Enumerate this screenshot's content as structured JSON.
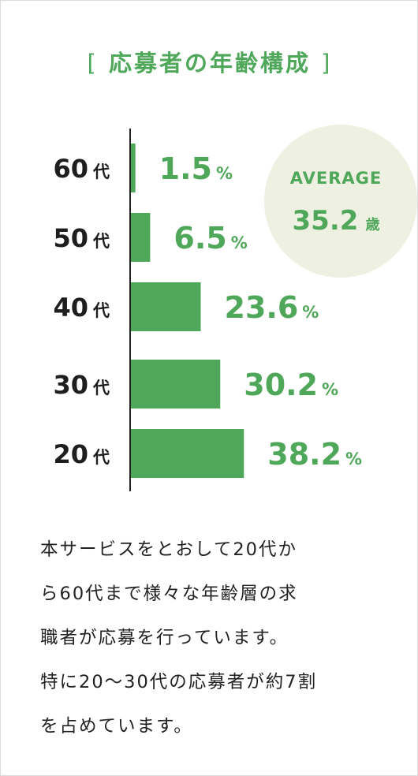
{
  "title": {
    "open_bracket": "[",
    "text": "応募者の年齢構成",
    "close_bracket": "]"
  },
  "chart_data": {
    "type": "bar",
    "orientation": "horizontal",
    "categories": [
      {
        "num": "60",
        "suffix": "代"
      },
      {
        "num": "50",
        "suffix": "代"
      },
      {
        "num": "40",
        "suffix": "代"
      },
      {
        "num": "30",
        "suffix": "代"
      },
      {
        "num": "20",
        "suffix": "代"
      }
    ],
    "values": [
      1.5,
      6.5,
      23.6,
      30.2,
      38.2
    ],
    "value_unit": "%",
    "bar_color": "#4fa75a",
    "label_color": "#4fa75a",
    "category_color": "#1e1e1e",
    "axis_color": "#222222"
  },
  "average": {
    "label": "AVERAGE",
    "value": "35.2",
    "unit": "歳",
    "bg_color": "#eef0e2",
    "text_color": "#4fa75a"
  },
  "description_lines": [
    "本サービスをとおして20代か",
    "ら60代まで様々な年齢層の求",
    "職者が応募を行っています。",
    "特に20〜30代の応募者が約7割",
    "を占めています。"
  ]
}
